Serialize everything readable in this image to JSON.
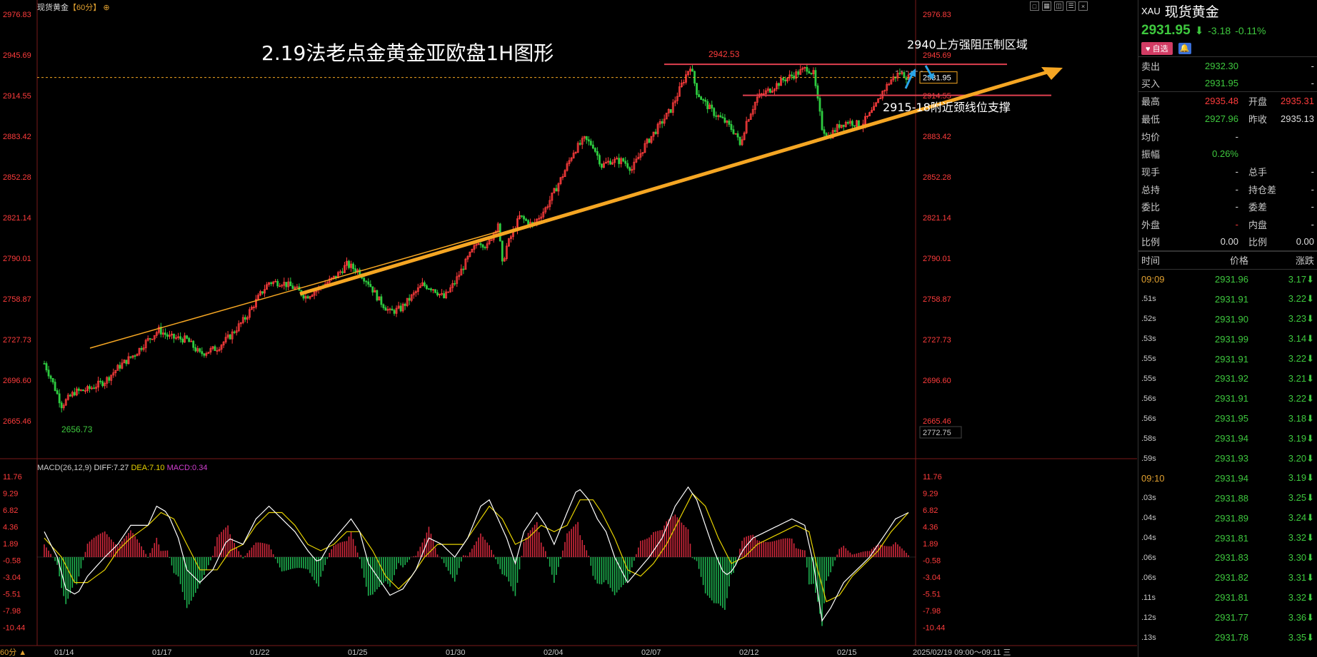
{
  "header": {
    "symbol_name": "现货黄金",
    "timeframe": "【60分】",
    "settings_glyph": "⊕"
  },
  "toolbar": {
    "icons": [
      "square-icon",
      "grid-icon",
      "layout-icon",
      "list-icon",
      "close-icon"
    ]
  },
  "annotations": {
    "title": "2.19法老点金黄金亚欧盘1H图形",
    "resistance_text": "2940上方强阻压制区域",
    "support_text": "2915-18附近颈线位支撑",
    "high_label": "2942.53",
    "low_label": "2656.73",
    "current_price_tag": "2931.95",
    "cursor_price_tag": "2772.75"
  },
  "chart_data": [
    {
      "type": "candlestick",
      "title": "现货黄金 60分",
      "x_ticks": [
        "01/14",
        "01/17",
        "01/22",
        "01/25",
        "01/30",
        "02/04",
        "02/07",
        "02/12",
        "02/15"
      ],
      "y_ticks": [
        "2976.83",
        "2945.69",
        "2914.55",
        "2883.42",
        "2852.28",
        "2821.14",
        "2790.01",
        "2758.87",
        "2727.73",
        "2696.60",
        "2665.46"
      ],
      "ylim": [
        2645,
        2985
      ],
      "path": [
        [
          0,
          2692
        ],
        [
          3,
          2680
        ],
        [
          8,
          2657
        ],
        [
          14,
          2668
        ],
        [
          20,
          2670
        ],
        [
          28,
          2677
        ],
        [
          35,
          2690
        ],
        [
          42,
          2700
        ],
        [
          47,
          2710
        ],
        [
          53,
          2720
        ],
        [
          58,
          2714
        ],
        [
          66,
          2712
        ],
        [
          72,
          2700
        ],
        [
          80,
          2705
        ],
        [
          86,
          2715
        ],
        [
          93,
          2730
        ],
        [
          100,
          2750
        ],
        [
          104,
          2760
        ],
        [
          110,
          2760
        ],
        [
          116,
          2755
        ],
        [
          121,
          2748
        ],
        [
          127,
          2755
        ],
        [
          135,
          2765
        ],
        [
          140,
          2775
        ],
        [
          145,
          2770
        ],
        [
          150,
          2760
        ],
        [
          155,
          2745
        ],
        [
          160,
          2735
        ],
        [
          165,
          2738
        ],
        [
          170,
          2748
        ],
        [
          175,
          2758
        ],
        [
          180,
          2755
        ],
        [
          185,
          2747
        ],
        [
          190,
          2760
        ],
        [
          196,
          2780
        ],
        [
          201,
          2795
        ],
        [
          205,
          2790
        ],
        [
          210,
          2810
        ],
        [
          212,
          2775
        ],
        [
          214,
          2790
        ],
        [
          220,
          2815
        ],
        [
          226,
          2808
        ],
        [
          232,
          2822
        ],
        [
          240,
          2850
        ],
        [
          245,
          2870
        ],
        [
          250,
          2880
        ],
        [
          254,
          2875
        ],
        [
          258,
          2858
        ],
        [
          262,
          2862
        ],
        [
          268,
          2862
        ],
        [
          272,
          2855
        ],
        [
          278,
          2875
        ],
        [
          284,
          2890
        ],
        [
          290,
          2905
        ],
        [
          296,
          2930
        ],
        [
          299,
          2942
        ],
        [
          302,
          2920
        ],
        [
          305,
          2912
        ],
        [
          310,
          2902
        ],
        [
          315,
          2895
        ],
        [
          320,
          2885
        ],
        [
          322,
          2875
        ],
        [
          325,
          2895
        ],
        [
          330,
          2915
        ],
        [
          336,
          2922
        ],
        [
          342,
          2930
        ],
        [
          348,
          2935
        ],
        [
          353,
          2940
        ],
        [
          356,
          2935
        ],
        [
          358,
          2912
        ],
        [
          360,
          2890
        ],
        [
          363,
          2882
        ],
        [
          368,
          2892
        ],
        [
          372,
          2895
        ],
        [
          378,
          2892
        ],
        [
          384,
          2905
        ],
        [
          388,
          2920
        ],
        [
          392,
          2930
        ],
        [
          396,
          2936
        ],
        [
          400,
          2932
        ]
      ],
      "resistance_line": 2940,
      "support_line": 2917,
      "current_price": 2931.95,
      "high": 2942.53,
      "low": 2656.73
    },
    {
      "type": "macd",
      "title": "MACD(26,12,9)",
      "diff_label": "DIFF:7.27",
      "dea_label": "DEA:7.10",
      "macd_label": "MACD:0.34",
      "y_ticks": [
        "11.76",
        "9.29",
        "6.82",
        "4.36",
        "1.89",
        "-0.58",
        "-3.04",
        "-5.51",
        "-7.98",
        "-10.44"
      ],
      "ylim": [
        -12,
        13
      ],
      "diff": [
        [
          0,
          4
        ],
        [
          6,
          0
        ],
        [
          10,
          -5
        ],
        [
          15,
          -6
        ],
        [
          20,
          -3
        ],
        [
          28,
          0
        ],
        [
          34,
          2
        ],
        [
          40,
          5
        ],
        [
          48,
          5
        ],
        [
          52,
          8
        ],
        [
          57,
          7
        ],
        [
          62,
          3
        ],
        [
          66,
          -2
        ],
        [
          72,
          -4
        ],
        [
          78,
          -2
        ],
        [
          85,
          3
        ],
        [
          92,
          2
        ],
        [
          98,
          6
        ],
        [
          104,
          8
        ],
        [
          110,
          6
        ],
        [
          116,
          4
        ],
        [
          122,
          1
        ],
        [
          127,
          -1
        ],
        [
          132,
          2
        ],
        [
          137,
          4
        ],
        [
          142,
          6
        ],
        [
          146,
          4
        ],
        [
          150,
          -1
        ],
        [
          154,
          -3
        ],
        [
          160,
          -6
        ],
        [
          166,
          -5
        ],
        [
          172,
          -2
        ],
        [
          178,
          3
        ],
        [
          184,
          2
        ],
        [
          190,
          0
        ],
        [
          196,
          3
        ],
        [
          202,
          8
        ],
        [
          206,
          9
        ],
        [
          210,
          6
        ],
        [
          214,
          3
        ],
        [
          218,
          -1
        ],
        [
          222,
          4
        ],
        [
          228,
          7
        ],
        [
          232,
          5
        ],
        [
          236,
          2
        ],
        [
          242,
          7
        ],
        [
          247,
          11
        ],
        [
          252,
          9
        ],
        [
          256,
          6
        ],
        [
          260,
          4
        ],
        [
          264,
          0
        ],
        [
          270,
          -4
        ],
        [
          275,
          -2
        ],
        [
          280,
          0
        ],
        [
          286,
          3
        ],
        [
          292,
          8
        ],
        [
          298,
          11
        ],
        [
          302,
          9
        ],
        [
          306,
          5
        ],
        [
          310,
          1
        ],
        [
          315,
          -3
        ],
        [
          319,
          -2
        ],
        [
          323,
          1
        ],
        [
          328,
          3
        ],
        [
          334,
          4
        ],
        [
          340,
          5
        ],
        [
          346,
          6
        ],
        [
          352,
          5
        ],
        [
          356,
          -1
        ],
        [
          360,
          -10
        ],
        [
          364,
          -8
        ],
        [
          370,
          -4
        ],
        [
          376,
          -2
        ],
        [
          382,
          0
        ],
        [
          388,
          3
        ],
        [
          394,
          6
        ],
        [
          400,
          7
        ]
      ],
      "dea": [
        [
          0,
          3
        ],
        [
          8,
          0
        ],
        [
          14,
          -4
        ],
        [
          20,
          -4
        ],
        [
          28,
          -2
        ],
        [
          34,
          1
        ],
        [
          40,
          3
        ],
        [
          48,
          5
        ],
        [
          54,
          7
        ],
        [
          60,
          6
        ],
        [
          66,
          2
        ],
        [
          72,
          -2
        ],
        [
          80,
          -2
        ],
        [
          86,
          1
        ],
        [
          92,
          2
        ],
        [
          98,
          5
        ],
        [
          104,
          7
        ],
        [
          110,
          7
        ],
        [
          116,
          5
        ],
        [
          122,
          2
        ],
        [
          128,
          1
        ],
        [
          134,
          2
        ],
        [
          140,
          4
        ],
        [
          146,
          4
        ],
        [
          152,
          1
        ],
        [
          158,
          -3
        ],
        [
          164,
          -5
        ],
        [
          170,
          -3
        ],
        [
          176,
          0
        ],
        [
          182,
          2
        ],
        [
          188,
          2
        ],
        [
          194,
          2
        ],
        [
          200,
          5
        ],
        [
          206,
          8
        ],
        [
          212,
          6
        ],
        [
          218,
          2
        ],
        [
          224,
          3
        ],
        [
          230,
          5
        ],
        [
          236,
          4
        ],
        [
          242,
          5
        ],
        [
          248,
          9
        ],
        [
          254,
          9
        ],
        [
          258,
          7
        ],
        [
          264,
          3
        ],
        [
          270,
          -2
        ],
        [
          276,
          -3
        ],
        [
          282,
          -1
        ],
        [
          288,
          2
        ],
        [
          294,
          6
        ],
        [
          300,
          10
        ],
        [
          306,
          8
        ],
        [
          312,
          3
        ],
        [
          318,
          -1
        ],
        [
          324,
          0
        ],
        [
          330,
          2
        ],
        [
          336,
          3
        ],
        [
          342,
          4
        ],
        [
          348,
          5
        ],
        [
          354,
          4
        ],
        [
          358,
          -2
        ],
        [
          362,
          -7
        ],
        [
          368,
          -6
        ],
        [
          374,
          -3
        ],
        [
          380,
          -1
        ],
        [
          386,
          1
        ],
        [
          392,
          4
        ],
        [
          400,
          7
        ]
      ]
    }
  ],
  "macd_colors": {
    "diff": "#ffffff",
    "dea": "#e6d200",
    "up": "#d2283c",
    "down": "#1eb450",
    "trend": "#f5a623",
    "cyan": "#29a3e6"
  },
  "bottom": {
    "timeframe_label": "60分",
    "time_range": "2025/02/19 09:00～09:11 三"
  },
  "panel": {
    "code": "XAU",
    "name": "现货黄金",
    "last": "2931.95",
    "arrow": "⬇",
    "change": "-3.18",
    "percent": "-0.11%",
    "fav_label": "♥ 自选",
    "bell": "🔔",
    "ask_label": "卖出",
    "ask": "2932.30",
    "ask_vol": "-",
    "bid_label": "买入",
    "bid": "2931.95",
    "bid_vol": "-",
    "rows": [
      {
        "l1": "最高",
        "v1": "2935.48",
        "c1": "red",
        "l2": "开盘",
        "v2": "2935.31",
        "c2": "red"
      },
      {
        "l1": "最低",
        "v1": "2927.96",
        "c1": "green",
        "l2": "昨收",
        "v2": "2935.13",
        "c2": "white"
      },
      {
        "l1": "均价",
        "v1": "-",
        "c1": "white",
        "l2": "",
        "v2": "",
        "c2": "white"
      },
      {
        "l1": "振幅",
        "v1": "0.26%",
        "c1": "green",
        "l2": "",
        "v2": "",
        "c2": "white"
      },
      {
        "l1": "现手",
        "v1": "-",
        "c1": "white",
        "l2": "总手",
        "v2": "-",
        "c2": "white"
      },
      {
        "l1": "总持",
        "v1": "-",
        "c1": "white",
        "l2": "持仓差",
        "v2": "-",
        "c2": "white"
      },
      {
        "l1": "委比",
        "v1": "-",
        "c1": "white",
        "l2": "委差",
        "v2": "-",
        "c2": "white"
      },
      {
        "l1": "外盘",
        "v1": "-",
        "c1": "red",
        "l2": "内盘",
        "v2": "-",
        "c2": "white"
      },
      {
        "l1": "比例",
        "v1": "0.00",
        "c1": "white",
        "l2": "比例",
        "v2": "0.00",
        "c2": "white"
      }
    ],
    "tick_head": {
      "time": "时间",
      "price": "价格",
      "change": "涨跌"
    },
    "ticks": [
      {
        "t": "09:09",
        "p": "2931.96",
        "c": "3.17⬇",
        "major": true
      },
      {
        "t": ".51s",
        "p": "2931.91",
        "c": "3.22⬇"
      },
      {
        "t": ".52s",
        "p": "2931.90",
        "c": "3.23⬇"
      },
      {
        "t": ".53s",
        "p": "2931.99",
        "c": "3.14⬇"
      },
      {
        "t": ".55s",
        "p": "2931.91",
        "c": "3.22⬇"
      },
      {
        "t": ".55s",
        "p": "2931.92",
        "c": "3.21⬇"
      },
      {
        "t": ".56s",
        "p": "2931.91",
        "c": "3.22⬇"
      },
      {
        "t": ".56s",
        "p": "2931.95",
        "c": "3.18⬇"
      },
      {
        "t": ".58s",
        "p": "2931.94",
        "c": "3.19⬇"
      },
      {
        "t": ".59s",
        "p": "2931.93",
        "c": "3.20⬇"
      },
      {
        "t": "09:10",
        "p": "2931.94",
        "c": "3.19⬇",
        "major": true
      },
      {
        "t": ".03s",
        "p": "2931.88",
        "c": "3.25⬇"
      },
      {
        "t": ".04s",
        "p": "2931.89",
        "c": "3.24⬇"
      },
      {
        "t": ".04s",
        "p": "2931.81",
        "c": "3.32⬇"
      },
      {
        "t": ".06s",
        "p": "2931.83",
        "c": "3.30⬇"
      },
      {
        "t": ".06s",
        "p": "2931.82",
        "c": "3.31⬇"
      },
      {
        "t": ".11s",
        "p": "2931.81",
        "c": "3.32⬇"
      },
      {
        "t": ".12s",
        "p": "2931.77",
        "c": "3.36⬇"
      },
      {
        "t": ".13s",
        "p": "2931.78",
        "c": "3.35⬇"
      }
    ]
  }
}
